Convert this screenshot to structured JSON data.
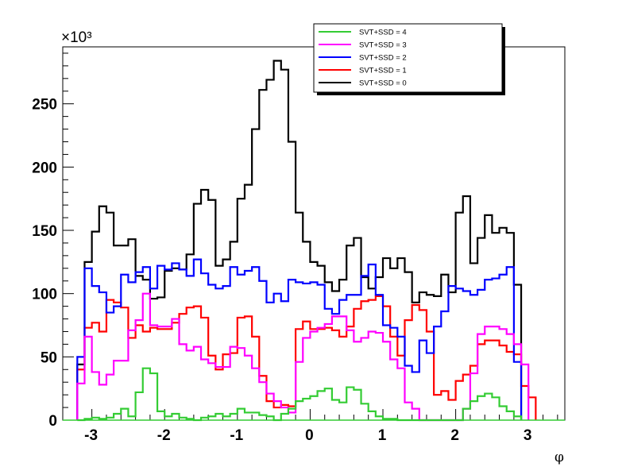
{
  "chart_data": {
    "type": "line",
    "title": "",
    "xlabel": "φ",
    "ylabel": "",
    "y_multiplier_label": "×10³",
    "xlim": [
      -3.4,
      3.5
    ],
    "ylim": [
      0,
      295
    ],
    "x_ticks": [
      -3,
      -2,
      -1,
      0,
      1,
      2,
      3
    ],
    "y_ticks": [
      0,
      50,
      100,
      150,
      200,
      250
    ],
    "bin_width": 0.1,
    "bin_start": -3.2,
    "legend_placement": "top-center",
    "series": [
      {
        "name": "SVT+SSD = 4",
        "color": "#33cc33",
        "values": [
          0,
          1,
          2,
          1,
          2,
          5,
          9,
          3,
          22,
          41,
          37,
          7,
          3,
          5,
          2,
          1,
          0,
          2,
          3,
          5,
          3,
          5,
          9,
          6,
          6,
          4,
          3,
          0,
          5,
          9,
          15,
          17,
          19,
          23,
          25,
          16,
          14,
          26,
          24,
          13,
          7,
          3,
          1,
          1,
          0,
          0,
          0,
          0,
          0,
          0,
          0,
          0,
          0,
          9,
          15,
          19,
          21,
          18,
          11,
          7,
          3
        ]
      },
      {
        "name": "SVT+SSD = 3",
        "color": "#ff00ff",
        "values": [
          29,
          66,
          38,
          28,
          36,
          47,
          47,
          71,
          79,
          100,
          75,
          74,
          74,
          80,
          60,
          55,
          58,
          48,
          45,
          42,
          42,
          58,
          57,
          51,
          41,
          30,
          21,
          15,
          10,
          6,
          46,
          65,
          70,
          73,
          76,
          82,
          82,
          71,
          62,
          65,
          70,
          69,
          62,
          48,
          41,
          14,
          9,
          0,
          0,
          0,
          0,
          0,
          0,
          9,
          37,
          68,
          74,
          74,
          72,
          68,
          60,
          44
        ]
      },
      {
        "name": "SVT+SSD = 2",
        "color": "#0000ff",
        "values": [
          50,
          120,
          106,
          101,
          85,
          90,
          115,
          109,
          117,
          121,
          104,
          122,
          119,
          124,
          119,
          114,
          127,
          116,
          107,
          104,
          106,
          121,
          115,
          118,
          121,
          110,
          93,
          100,
          94,
          111,
          109,
          108,
          109,
          107,
          88,
          84,
          95,
          99,
          99,
          114,
          123,
          99,
          75,
          73,
          66,
          43,
          38,
          63,
          53,
          74,
          86,
          106,
          104,
          102,
          99,
          103,
          111,
          112,
          115,
          121,
          46
        ]
      },
      {
        "name": "SVT+SSD = 1",
        "color": "#ff0000",
        "values": [
          40,
          73,
          77,
          70,
          95,
          93,
          89,
          65,
          75,
          70,
          73,
          72,
          72,
          77,
          84,
          89,
          90,
          81,
          51,
          40,
          52,
          53,
          81,
          82,
          66,
          35,
          15,
          10,
          12,
          11,
          72,
          78,
          72,
          72,
          73,
          71,
          66,
          74,
          88,
          94,
          95,
          98,
          90,
          66,
          51,
          79,
          91,
          87,
          70,
          20,
          23,
          16,
          31,
          36,
          43,
          60,
          63,
          63,
          59,
          54,
          52,
          27,
          18
        ]
      },
      {
        "name": "SVT+SSD = 0",
        "color": "#000000",
        "values": [
          44,
          125,
          149,
          169,
          164,
          138,
          138,
          143,
          114,
          111,
          96,
          97,
          118,
          120,
          119,
          131,
          171,
          182,
          174,
          122,
          127,
          141,
          175,
          186,
          230,
          261,
          269,
          284,
          277,
          220,
          164,
          141,
          125,
          122,
          109,
          102,
          111,
          138,
          144,
          113,
          104,
          113,
          128,
          120,
          128,
          117,
          93,
          101,
          99,
          98,
          115,
          101,
          164,
          177,
          124,
          144,
          162,
          148,
          152,
          148,
          107
        ]
      }
    ]
  },
  "legend": {
    "items": [
      {
        "label": "SVT+SSD = 4",
        "color": "#33cc33"
      },
      {
        "label": "SVT+SSD = 3",
        "color": "#ff00ff"
      },
      {
        "label": "SVT+SSD = 2",
        "color": "#0000ff"
      },
      {
        "label": "SVT+SSD = 1",
        "color": "#ff0000"
      },
      {
        "label": "SVT+SSD = 0",
        "color": "#000000"
      }
    ]
  }
}
